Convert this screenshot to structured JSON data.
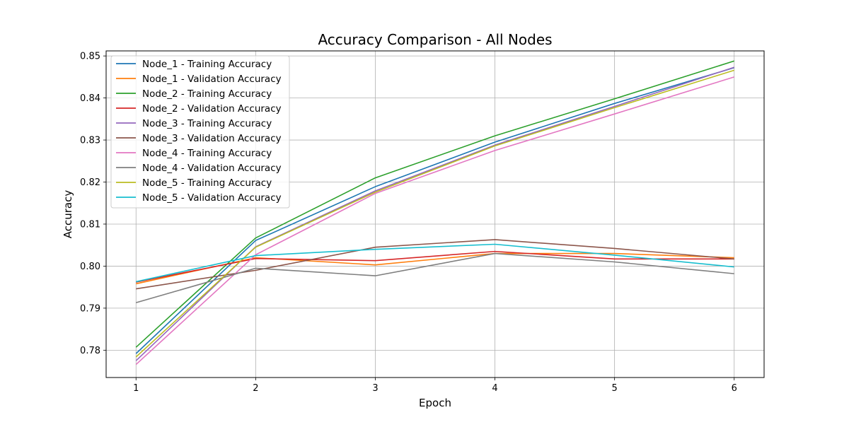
{
  "chart_data": {
    "type": "line",
    "title": "Accuracy Comparison - All Nodes",
    "xlabel": "Epoch",
    "ylabel": "Accuracy",
    "x": [
      1,
      2,
      3,
      4,
      5,
      6
    ],
    "xticks": [
      "1",
      "2",
      "3",
      "4",
      "5",
      "6"
    ],
    "xlim": [
      0.75,
      6.25
    ],
    "yticks": [
      "0.78",
      "0.79",
      "0.80",
      "0.81",
      "0.82",
      "0.83",
      "0.84",
      "0.85"
    ],
    "ylim": [
      0.7735,
      0.8512
    ],
    "grid": true,
    "legend_position": "upper-left",
    "series": [
      {
        "name": "Node_1 - Training Accuracy",
        "color": "#1f77b4",
        "values": [
          0.7792,
          0.8061,
          0.8189,
          0.8295,
          0.8387,
          0.8472
        ]
      },
      {
        "name": "Node_1 - Validation Accuracy",
        "color": "#ff7f0e",
        "values": [
          0.7958,
          0.802,
          0.8003,
          0.803,
          0.803,
          0.802
        ]
      },
      {
        "name": "Node_2 - Training Accuracy",
        "color": "#2ca02c",
        "values": [
          0.7807,
          0.8067,
          0.821,
          0.831,
          0.8398,
          0.8488
        ]
      },
      {
        "name": "Node_2 - Validation Accuracy",
        "color": "#d62728",
        "values": [
          0.7962,
          0.8018,
          0.8013,
          0.8035,
          0.8017,
          0.8017
        ]
      },
      {
        "name": "Node_3 - Training Accuracy",
        "color": "#9467bd",
        "values": [
          0.7775,
          0.8046,
          0.8179,
          0.8288,
          0.838,
          0.8473
        ]
      },
      {
        "name": "Node_3 - Validation Accuracy",
        "color": "#8c564b",
        "values": [
          0.7946,
          0.799,
          0.8045,
          0.8063,
          0.8042,
          0.8017
        ]
      },
      {
        "name": "Node_4 - Training Accuracy",
        "color": "#e377c2",
        "values": [
          0.7766,
          0.8027,
          0.8173,
          0.8275,
          0.8362,
          0.845
        ]
      },
      {
        "name": "Node_4 - Validation Accuracy",
        "color": "#7f7f7f",
        "values": [
          0.7913,
          0.7995,
          0.7977,
          0.803,
          0.801,
          0.7982
        ]
      },
      {
        "name": "Node_5 - Training Accuracy",
        "color": "#bcbd22",
        "values": [
          0.7784,
          0.8045,
          0.8176,
          0.8286,
          0.8377,
          0.8466
        ]
      },
      {
        "name": "Node_5 - Validation Accuracy",
        "color": "#17becf",
        "values": [
          0.7963,
          0.8025,
          0.804,
          0.8052,
          0.8026,
          0.7998
        ]
      }
    ]
  }
}
